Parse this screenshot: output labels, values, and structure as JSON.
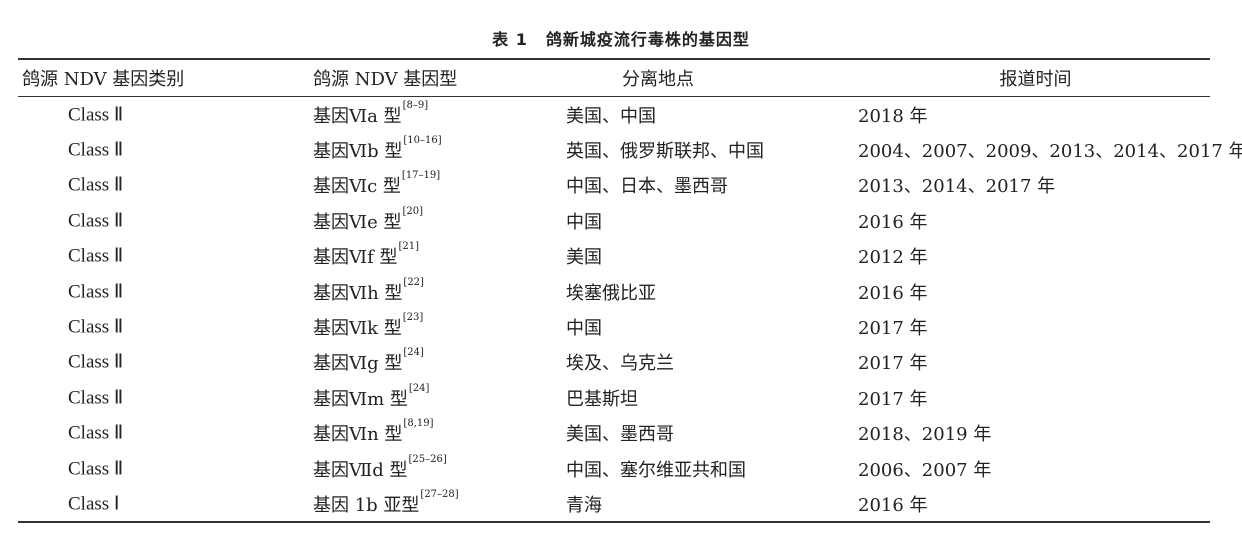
{
  "title": {
    "number": "表 1",
    "text": "鸽新城疫流行毒株的基因型"
  },
  "headers": [
    "鸽源 NDV 基因类别",
    "鸽源 NDV 基因型",
    "分离地点",
    "报道时间"
  ],
  "rows": [
    {
      "class": "Class Ⅱ",
      "genotype": "基因Ⅵa 型",
      "ref": "[8–9]",
      "location": "美国、中国",
      "time": "2018 年"
    },
    {
      "class": "Class Ⅱ",
      "genotype": "基因Ⅵb 型",
      "ref": "[10–16]",
      "location": "英国、俄罗斯联邦、中国",
      "time": "2004、2007、2009、2013、2014、2017 年"
    },
    {
      "class": "Class Ⅱ",
      "genotype": "基因Ⅵc 型",
      "ref": "[17–19]",
      "location": "中国、日本、墨西哥",
      "time": "2013、2014、2017 年"
    },
    {
      "class": "Class Ⅱ",
      "genotype": "基因Ⅵe 型",
      "ref": "[20]",
      "location": "中国",
      "time": "2016 年"
    },
    {
      "class": "Class Ⅱ",
      "genotype": "基因Ⅵf 型",
      "ref": "[21]",
      "location": "美国",
      "time": "2012 年"
    },
    {
      "class": "Class Ⅱ",
      "genotype": "基因Ⅵh 型",
      "ref": "[22]",
      "location": "埃塞俄比亚",
      "time": "2016 年"
    },
    {
      "class": "Class Ⅱ",
      "genotype": "基因Ⅵk 型",
      "ref": "[23]",
      "location": "中国",
      "time": "2017 年"
    },
    {
      "class": "Class Ⅱ",
      "genotype": "基因Ⅵg 型",
      "ref": "[24]",
      "location": "埃及、乌克兰",
      "time": "2017 年"
    },
    {
      "class": "Class Ⅱ",
      "genotype": "基因Ⅵm 型",
      "ref": "[24]",
      "location": "巴基斯坦",
      "time": "2017 年"
    },
    {
      "class": "Class Ⅱ",
      "genotype": "基因Ⅵn 型",
      "ref": "[8,19]",
      "location": "美国、墨西哥",
      "time": "2018、2019 年"
    },
    {
      "class": "Class Ⅱ",
      "genotype": "基因Ⅶd 型",
      "ref": "[25–26]",
      "location": "中国、塞尔维亚共和国",
      "time": "2006、2007 年"
    },
    {
      "class": "Class Ⅰ",
      "genotype": "基因 1b 亚型",
      "ref": "[27–28]",
      "location": "青海",
      "time": "2016 年"
    }
  ]
}
